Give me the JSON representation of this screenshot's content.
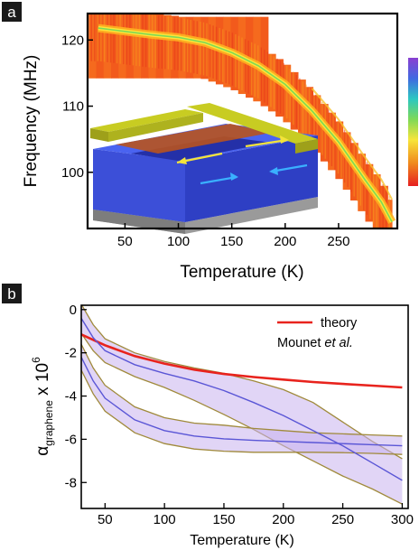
{
  "panels": {
    "a": {
      "letter": "a"
    },
    "b": {
      "letter": "b"
    }
  },
  "chart_data": [
    {
      "panel": "a",
      "type": "heatmap",
      "xlabel": "Temperature (K)",
      "ylabel": "Frequency (MHz)",
      "xticks": [
        50,
        100,
        150,
        200,
        250
      ],
      "yticks": [
        100,
        110,
        120
      ],
      "xlim": [
        15,
        305
      ],
      "ylim": [
        91.5,
        124
      ],
      "colorbar": {
        "placement": "right",
        "colors": [
          "#e62020",
          "#f08a1c",
          "#f7e53a",
          "#7ed957",
          "#2bc7c2",
          "#4169e1",
          "#8a3fd1"
        ]
      },
      "resonance_curve": {
        "x": [
          25,
          50,
          75,
          100,
          125,
          150,
          175,
          200,
          225,
          250,
          275,
          290,
          300
        ],
        "y": [
          121.8,
          121.3,
          120.8,
          120.4,
          119.6,
          118.1,
          116.1,
          113.3,
          109.3,
          104.6,
          98.8,
          95.5,
          92.5
        ]
      },
      "inset": {
        "description_icon": "graphene-resonator-device-schematic"
      }
    },
    {
      "panel": "b",
      "type": "line",
      "xlabel": "Temperature (K)",
      "ylabel": "α",
      "ylabel_sub": "graphene",
      "ylabel_suffix": " x 10",
      "ylabel_sup": "6",
      "xticks": [
        50,
        100,
        150,
        200,
        250,
        300
      ],
      "yticks": [
        0,
        -2,
        -4,
        -6,
        -8
      ],
      "xlim": [
        30,
        305
      ],
      "ylim": [
        -9.2,
        0.2
      ],
      "legend": {
        "placement": "top-right",
        "line_label": "theory",
        "ref_prefix": "Mounet ",
        "ref_italic": "et al."
      },
      "series": [
        {
          "name": "theory",
          "color": "#e8231d",
          "x": [
            30,
            50,
            75,
            100,
            125,
            150,
            175,
            200,
            225,
            250,
            275,
            300
          ],
          "y": [
            -1.15,
            -1.65,
            -2.15,
            -2.5,
            -2.78,
            -2.98,
            -3.12,
            -3.24,
            -3.35,
            -3.44,
            -3.52,
            -3.6
          ]
        },
        {
          "color": "#5a56d6",
          "band_color": "#c9b3ee",
          "edge_color": "#a08a3c",
          "x": [
            30,
            40,
            50,
            75,
            100,
            125,
            150,
            175,
            200,
            225,
            250,
            275,
            300
          ],
          "y": [
            -0.4,
            -1.3,
            -1.9,
            -2.55,
            -2.95,
            -3.3,
            -3.75,
            -4.3,
            -4.9,
            -5.6,
            -6.3,
            -7.1,
            -7.9
          ],
          "lower": [
            -1.1,
            -1.9,
            -2.45,
            -3.1,
            -3.6,
            -4.2,
            -4.85,
            -5.55,
            -6.3,
            -7.0,
            -7.7,
            -8.3,
            -9.0
          ],
          "upper": [
            0.25,
            -0.7,
            -1.35,
            -2.0,
            -2.4,
            -2.7,
            -2.95,
            -3.3,
            -3.7,
            -4.3,
            -5.2,
            -6.1,
            -6.9
          ]
        },
        {
          "color": "#5a56d6",
          "band_color": "#c9b3ee",
          "edge_color": "#a08a3c",
          "x": [
            30,
            40,
            50,
            75,
            100,
            125,
            150,
            175,
            200,
            225,
            250,
            275,
            300
          ],
          "y": [
            -2.2,
            -3.3,
            -4.1,
            -5.1,
            -5.6,
            -5.85,
            -5.98,
            -6.05,
            -6.1,
            -6.15,
            -6.2,
            -6.25,
            -6.3
          ],
          "lower": [
            -2.8,
            -3.9,
            -4.7,
            -5.7,
            -6.2,
            -6.45,
            -6.55,
            -6.6,
            -6.6,
            -6.6,
            -6.62,
            -6.65,
            -6.7
          ],
          "upper": [
            -1.6,
            -2.7,
            -3.5,
            -4.5,
            -5.0,
            -5.25,
            -5.35,
            -5.5,
            -5.6,
            -5.7,
            -5.75,
            -5.8,
            -5.85
          ]
        }
      ]
    }
  ]
}
